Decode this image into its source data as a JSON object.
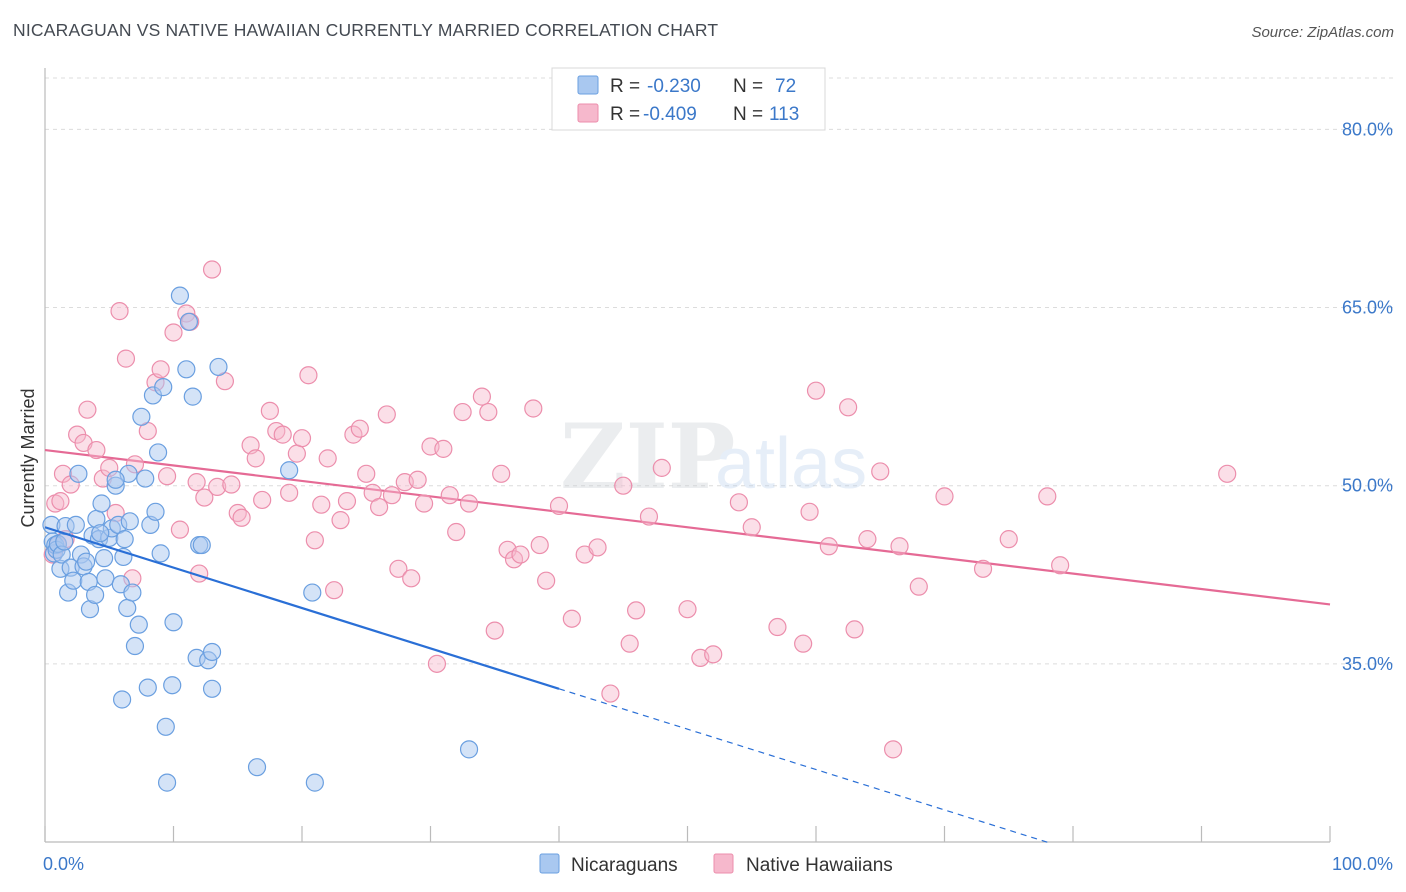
{
  "title": "NICARAGUAN VS NATIVE HAWAIIAN CURRENTLY MARRIED CORRELATION CHART",
  "source": "Source: ZipAtlas.com",
  "watermark": {
    "zip": "ZIP",
    "atlas": "atlas"
  },
  "colors": {
    "blue_fill": "#a9c8f0",
    "blue_stroke": "#6a9fe0",
    "blue_line": "#2a6fd6",
    "pink_fill": "#f6b8cc",
    "pink_stroke": "#ec8eac",
    "pink_line": "#e56a95",
    "axis_text": "#3b78c9"
  },
  "legend": {
    "rows": [
      {
        "r_label": "R = ",
        "r_value": "-0.230",
        "n_label": "N = ",
        "n_value": "72"
      },
      {
        "r_label": "R = ",
        "r_value": "-0.409",
        "n_label": "N = ",
        "n_value": "113"
      }
    ]
  },
  "chart_data": {
    "type": "scatter",
    "title": "NICARAGUAN VS NATIVE HAWAIIAN CURRENTLY MARRIED CORRELATION CHART",
    "xlabel": "",
    "ylabel": "Currently Married",
    "xlim": [
      0,
      100
    ],
    "ylim": [
      20,
      85
    ],
    "x_tick_labels": [
      "0.0%",
      "100.0%"
    ],
    "y_ticks": [
      35,
      50,
      65,
      80
    ],
    "y_tick_labels": [
      "35.0%",
      "50.0%",
      "65.0%",
      "80.0%"
    ],
    "grid": true,
    "legend_position": "top-center",
    "series": [
      {
        "name": "Nicaraguans",
        "color": "#6a9fe0",
        "trend": {
          "x_start": 0,
          "y_start": 46.5,
          "x_solid_end": 40,
          "x_dash_end": 78,
          "slope": -0.34
        },
        "points": [
          [
            0.5,
            46.7
          ],
          [
            0.6,
            45.3
          ],
          [
            0.7,
            44.3
          ],
          [
            0.8,
            45.0
          ],
          [
            0.9,
            44.6
          ],
          [
            1.0,
            45.1
          ],
          [
            1.2,
            43.0
          ],
          [
            1.3,
            44.2
          ],
          [
            1.5,
            45.3
          ],
          [
            1.6,
            46.6
          ],
          [
            1.8,
            41.0
          ],
          [
            2.0,
            43.1
          ],
          [
            2.2,
            42.0
          ],
          [
            2.4,
            46.7
          ],
          [
            2.6,
            51.0
          ],
          [
            2.8,
            44.2
          ],
          [
            3.0,
            43.2
          ],
          [
            3.2,
            43.6
          ],
          [
            3.4,
            41.9
          ],
          [
            3.5,
            39.6
          ],
          [
            3.7,
            45.8
          ],
          [
            3.9,
            40.8
          ],
          [
            4.0,
            47.2
          ],
          [
            4.2,
            45.5
          ],
          [
            4.4,
            48.5
          ],
          [
            4.6,
            43.9
          ],
          [
            4.7,
            42.2
          ],
          [
            5.0,
            45.6
          ],
          [
            5.2,
            46.4
          ],
          [
            5.5,
            50.0
          ],
          [
            5.7,
            46.7
          ],
          [
            5.9,
            41.7
          ],
          [
            6.0,
            32.0
          ],
          [
            6.2,
            45.5
          ],
          [
            6.4,
            39.7
          ],
          [
            6.5,
            51.0
          ],
          [
            6.6,
            47.0
          ],
          [
            6.8,
            41.0
          ],
          [
            7.0,
            36.5
          ],
          [
            7.3,
            38.3
          ],
          [
            7.5,
            55.8
          ],
          [
            7.8,
            50.6
          ],
          [
            8.0,
            33.0
          ],
          [
            8.2,
            46.7
          ],
          [
            8.4,
            57.6
          ],
          [
            8.6,
            47.8
          ],
          [
            8.8,
            52.8
          ],
          [
            9.0,
            44.3
          ],
          [
            9.2,
            58.3
          ],
          [
            9.4,
            29.7
          ],
          [
            9.5,
            25.0
          ],
          [
            9.9,
            33.2
          ],
          [
            10.0,
            38.5
          ],
          [
            10.5,
            66.0
          ],
          [
            11.0,
            59.8
          ],
          [
            11.2,
            63.8
          ],
          [
            11.5,
            57.5
          ],
          [
            11.8,
            35.5
          ],
          [
            12.0,
            45.0
          ],
          [
            12.2,
            45.0
          ],
          [
            12.7,
            35.3
          ],
          [
            13.0,
            36.0
          ],
          [
            13.0,
            32.9
          ],
          [
            13.5,
            60.0
          ],
          [
            16.5,
            26.3
          ],
          [
            19.0,
            51.3
          ],
          [
            21.0,
            25.0
          ],
          [
            20.8,
            41.0
          ],
          [
            33.0,
            27.8
          ],
          [
            5.5,
            50.5
          ],
          [
            4.3,
            46.0
          ],
          [
            6.1,
            44.0
          ]
        ]
      },
      {
        "name": "Native Hawaiians",
        "color": "#ec8eac",
        "trend": {
          "x_start": 0,
          "y_start": 53.0,
          "x_end": 100,
          "y_end": 40.0
        },
        "points": [
          [
            0.6,
            44.2
          ],
          [
            0.8,
            48.5
          ],
          [
            1.0,
            45.0
          ],
          [
            1.2,
            48.7
          ],
          [
            1.4,
            51.0
          ],
          [
            1.6,
            45.5
          ],
          [
            2.0,
            50.1
          ],
          [
            2.5,
            54.3
          ],
          [
            3.0,
            53.6
          ],
          [
            3.3,
            56.4
          ],
          [
            4.0,
            53.0
          ],
          [
            4.5,
            50.6
          ],
          [
            5.0,
            51.5
          ],
          [
            5.5,
            47.7
          ],
          [
            5.8,
            64.7
          ],
          [
            6.3,
            60.7
          ],
          [
            6.8,
            42.2
          ],
          [
            7.0,
            51.8
          ],
          [
            8.0,
            54.6
          ],
          [
            8.6,
            58.7
          ],
          [
            9.0,
            59.8
          ],
          [
            9.5,
            50.8
          ],
          [
            10.0,
            62.9
          ],
          [
            10.5,
            46.3
          ],
          [
            11.0,
            64.5
          ],
          [
            11.3,
            63.8
          ],
          [
            11.8,
            50.3
          ],
          [
            12.0,
            42.6
          ],
          [
            12.4,
            49.0
          ],
          [
            13.0,
            68.2
          ],
          [
            13.4,
            49.9
          ],
          [
            14.0,
            58.8
          ],
          [
            14.5,
            50.1
          ],
          [
            15.0,
            47.7
          ],
          [
            15.3,
            47.3
          ],
          [
            16.0,
            53.4
          ],
          [
            16.4,
            52.3
          ],
          [
            16.9,
            48.8
          ],
          [
            17.5,
            56.3
          ],
          [
            18.0,
            54.6
          ],
          [
            18.5,
            54.3
          ],
          [
            19.0,
            49.4
          ],
          [
            19.6,
            52.7
          ],
          [
            20.0,
            54.0
          ],
          [
            20.5,
            59.3
          ],
          [
            21.0,
            45.4
          ],
          [
            21.5,
            48.4
          ],
          [
            22.0,
            52.3
          ],
          [
            22.5,
            41.2
          ],
          [
            23.0,
            47.1
          ],
          [
            23.5,
            48.7
          ],
          [
            24.0,
            54.3
          ],
          [
            24.5,
            54.8
          ],
          [
            25.0,
            51.0
          ],
          [
            25.5,
            49.4
          ],
          [
            26.0,
            48.2
          ],
          [
            26.6,
            56.0
          ],
          [
            27.0,
            49.2
          ],
          [
            27.5,
            43.0
          ],
          [
            28.0,
            50.3
          ],
          [
            28.5,
            42.2
          ],
          [
            29.0,
            50.5
          ],
          [
            29.5,
            48.5
          ],
          [
            30.0,
            53.3
          ],
          [
            30.5,
            35.0
          ],
          [
            31.0,
            53.1
          ],
          [
            31.5,
            49.2
          ],
          [
            32.0,
            46.1
          ],
          [
            32.5,
            56.2
          ],
          [
            33.0,
            48.5
          ],
          [
            34.0,
            57.5
          ],
          [
            34.5,
            56.2
          ],
          [
            35.0,
            37.8
          ],
          [
            35.5,
            51.0
          ],
          [
            36.0,
            44.6
          ],
          [
            36.5,
            43.8
          ],
          [
            37.0,
            44.2
          ],
          [
            38.0,
            56.5
          ],
          [
            38.5,
            45.0
          ],
          [
            39.0,
            42.0
          ],
          [
            40.0,
            48.3
          ],
          [
            41.0,
            38.8
          ],
          [
            42.0,
            44.2
          ],
          [
            43.0,
            44.8
          ],
          [
            44.0,
            32.5
          ],
          [
            45.0,
            50.0
          ],
          [
            45.5,
            36.7
          ],
          [
            46.0,
            39.5
          ],
          [
            47.0,
            47.4
          ],
          [
            48.0,
            51.5
          ],
          [
            50.0,
            39.6
          ],
          [
            51.0,
            35.5
          ],
          [
            52.0,
            35.8
          ],
          [
            54.0,
            48.6
          ],
          [
            55.0,
            46.5
          ],
          [
            57.0,
            38.1
          ],
          [
            59.0,
            36.7
          ],
          [
            59.5,
            47.8
          ],
          [
            60.0,
            58.0
          ],
          [
            61.0,
            44.9
          ],
          [
            62.5,
            56.6
          ],
          [
            63.0,
            37.9
          ],
          [
            64.0,
            45.5
          ],
          [
            65.0,
            51.2
          ],
          [
            66.0,
            27.8
          ],
          [
            66.5,
            44.9
          ],
          [
            68.0,
            41.5
          ],
          [
            70.0,
            49.1
          ],
          [
            73.0,
            43.0
          ],
          [
            75.0,
            45.5
          ],
          [
            78.0,
            49.1
          ],
          [
            79.0,
            43.3
          ],
          [
            92.0,
            51.0
          ]
        ]
      }
    ]
  },
  "bottom_legend": [
    {
      "label": "Nicaraguans"
    },
    {
      "label": "Native Hawaiians"
    }
  ]
}
